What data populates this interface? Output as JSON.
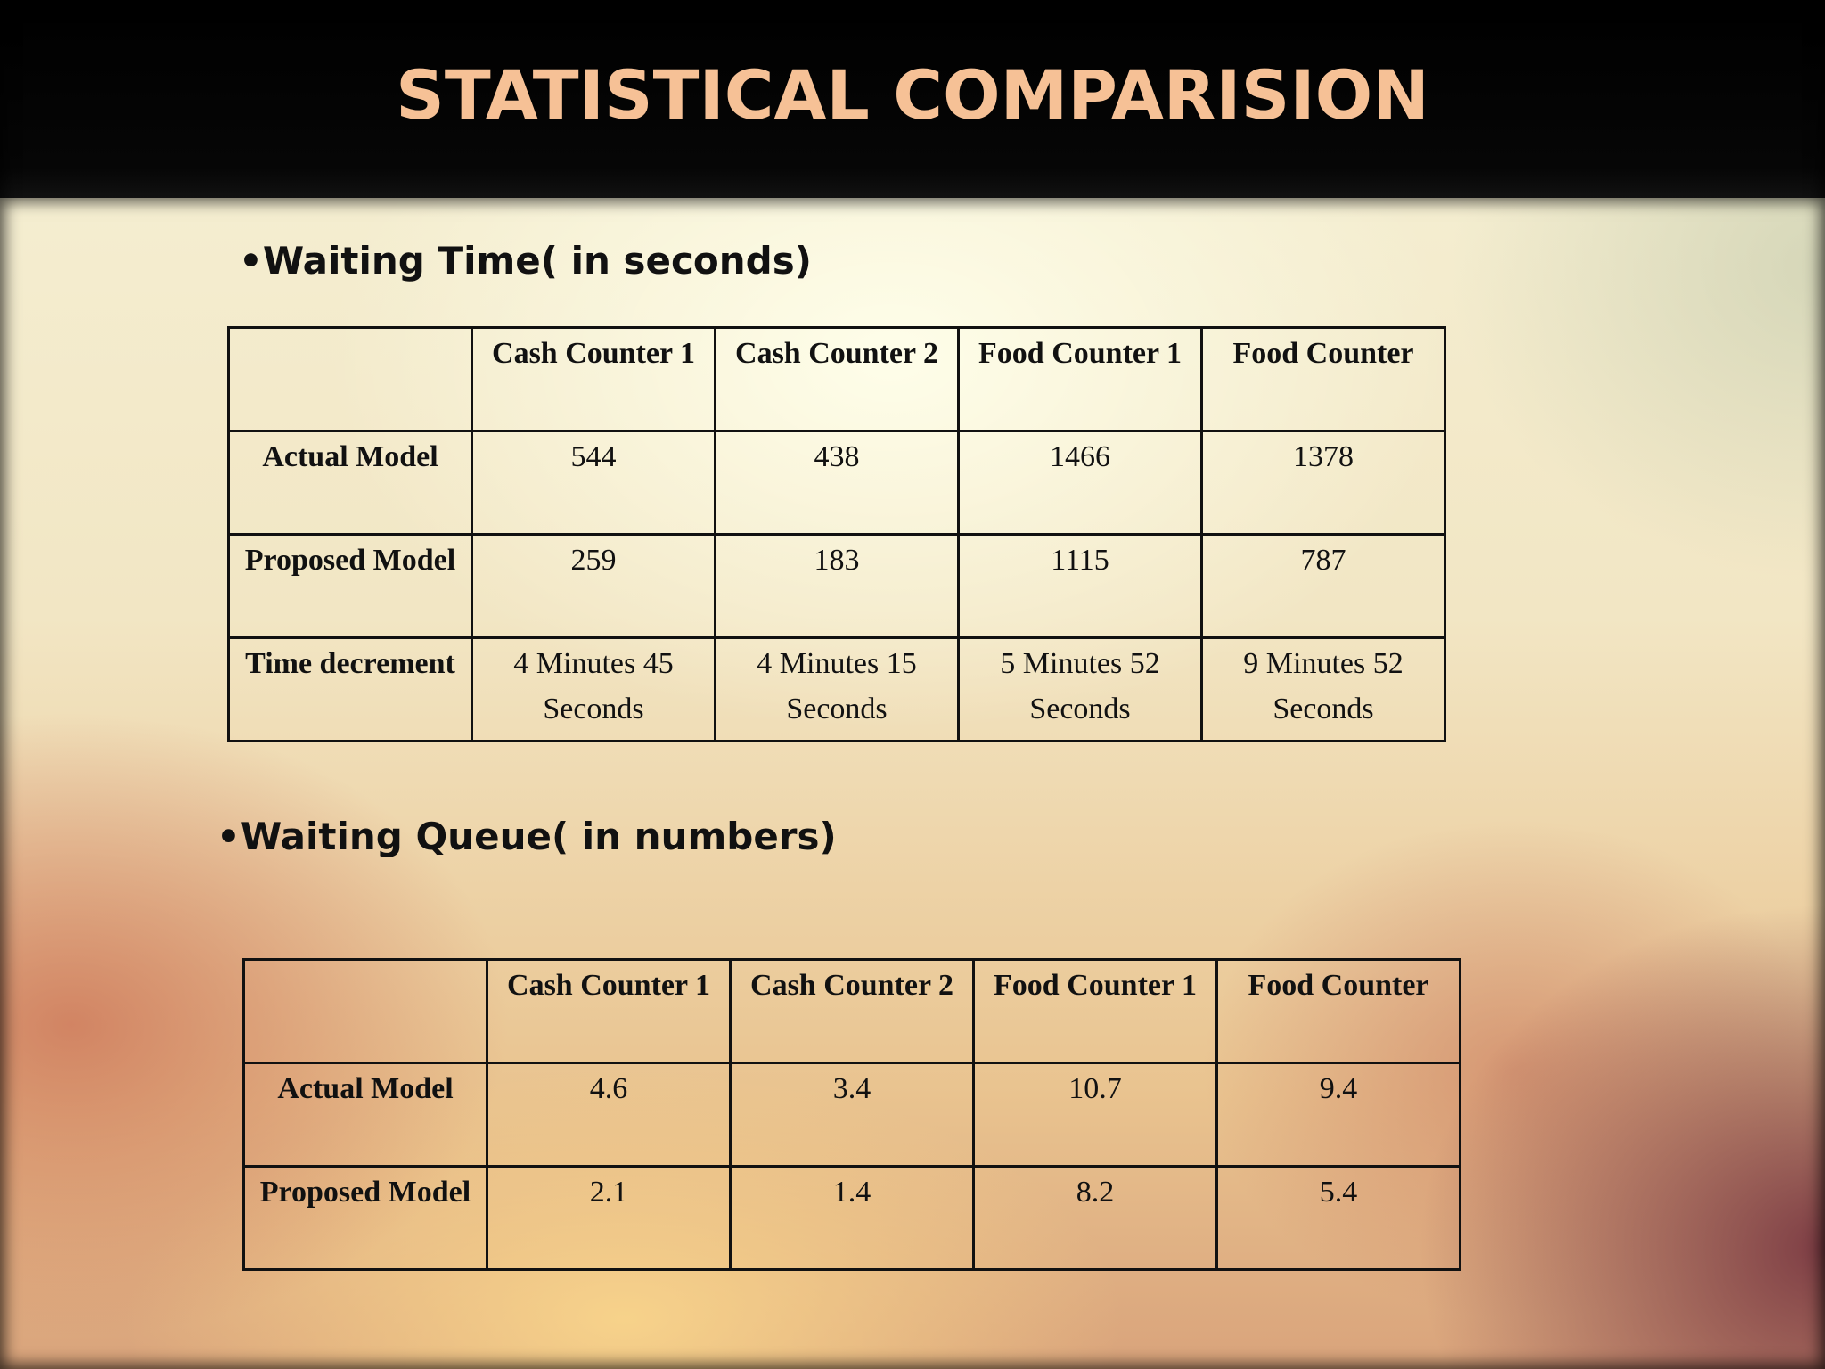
{
  "title": "STATISTICAL COMPARISION",
  "sections": [
    {
      "heading": "•Waiting Time( in seconds)",
      "columns": [
        "",
        "Cash Counter 1",
        "Cash Counter 2",
        "Food Counter 1",
        "Food Counter"
      ],
      "rows": [
        {
          "label": "Actual Model",
          "values": [
            "544",
            "438",
            "1466",
            "1378"
          ]
        },
        {
          "label": "Proposed Model",
          "values": [
            "259",
            "183",
            "1115",
            "787"
          ]
        },
        {
          "label": "Time decrement",
          "values": [
            "4 Minutes 45 Seconds",
            "4 Minutes 15 Seconds",
            "5 Minutes 52 Seconds",
            "9 Minutes 52 Seconds"
          ]
        }
      ]
    },
    {
      "heading": "•Waiting Queue( in numbers)",
      "columns": [
        "",
        "Cash Counter 1",
        "Cash Counter 2",
        "Food Counter 1",
        "Food Counter"
      ],
      "rows": [
        {
          "label": "Actual Model",
          "values": [
            "4.6",
            "3.4",
            "10.7",
            "9.4"
          ]
        },
        {
          "label": "Proposed Model",
          "values": [
            "2.1",
            "1.4",
            "8.2",
            "5.4"
          ]
        }
      ]
    }
  ]
}
